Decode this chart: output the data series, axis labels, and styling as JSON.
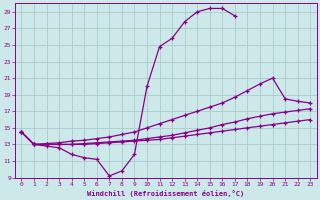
{
  "xlabel": "Windchill (Refroidissement éolien,°C)",
  "bg_color": "#cce8e8",
  "grid_color": "#aacccc",
  "line_color": "#880088",
  "xlim": [
    -0.5,
    23.5
  ],
  "ylim": [
    9,
    30
  ],
  "xticks": [
    0,
    1,
    2,
    3,
    4,
    5,
    6,
    7,
    8,
    9,
    10,
    11,
    12,
    13,
    14,
    15,
    16,
    17,
    18,
    19,
    20,
    21,
    22,
    23
  ],
  "yticks": [
    9,
    11,
    13,
    15,
    17,
    19,
    21,
    23,
    25,
    27,
    29
  ],
  "lines": [
    {
      "x": [
        0,
        1,
        2,
        3,
        4,
        5,
        6,
        7,
        8,
        9,
        10,
        11,
        12,
        13,
        14,
        15,
        16,
        17
      ],
      "y": [
        14.5,
        13.0,
        12.8,
        12.6,
        11.8,
        11.4,
        11.2,
        9.2,
        9.8,
        11.8,
        20.0,
        24.8,
        25.8,
        27.8,
        29.0,
        29.4,
        29.4,
        28.5
      ]
    },
    {
      "x": [
        0,
        1,
        2,
        3,
        4,
        5,
        6,
        7,
        8,
        9,
        10,
        11,
        12,
        13,
        14,
        15,
        16,
        17,
        18,
        19,
        20,
        21,
        22,
        23
      ],
      "y": [
        14.5,
        13.0,
        13.1,
        13.2,
        13.4,
        13.5,
        13.7,
        13.9,
        14.2,
        14.5,
        15.0,
        15.5,
        16.0,
        16.5,
        17.0,
        17.5,
        18.0,
        18.7,
        19.5,
        20.3,
        21.0,
        18.5,
        18.2,
        18.0
      ]
    },
    {
      "x": [
        0,
        1,
        2,
        3,
        4,
        5,
        6,
        7,
        8,
        9,
        10,
        11,
        12,
        13,
        14,
        15,
        16,
        17,
        18,
        19,
        20,
        21,
        22,
        23
      ],
      "y": [
        14.5,
        13.0,
        13.0,
        13.0,
        13.0,
        13.1,
        13.2,
        13.3,
        13.4,
        13.5,
        13.7,
        13.9,
        14.1,
        14.4,
        14.7,
        15.0,
        15.4,
        15.7,
        16.1,
        16.4,
        16.7,
        16.9,
        17.1,
        17.3
      ]
    },
    {
      "x": [
        0,
        1,
        2,
        3,
        4,
        5,
        6,
        7,
        8,
        9,
        10,
        11,
        12,
        13,
        14,
        15,
        16,
        17,
        18,
        19,
        20,
        21,
        22,
        23
      ],
      "y": [
        14.5,
        13.0,
        13.0,
        13.0,
        13.0,
        13.0,
        13.1,
        13.2,
        13.3,
        13.4,
        13.5,
        13.6,
        13.8,
        14.0,
        14.2,
        14.4,
        14.6,
        14.8,
        15.0,
        15.2,
        15.4,
        15.6,
        15.8,
        16.0
      ]
    }
  ]
}
